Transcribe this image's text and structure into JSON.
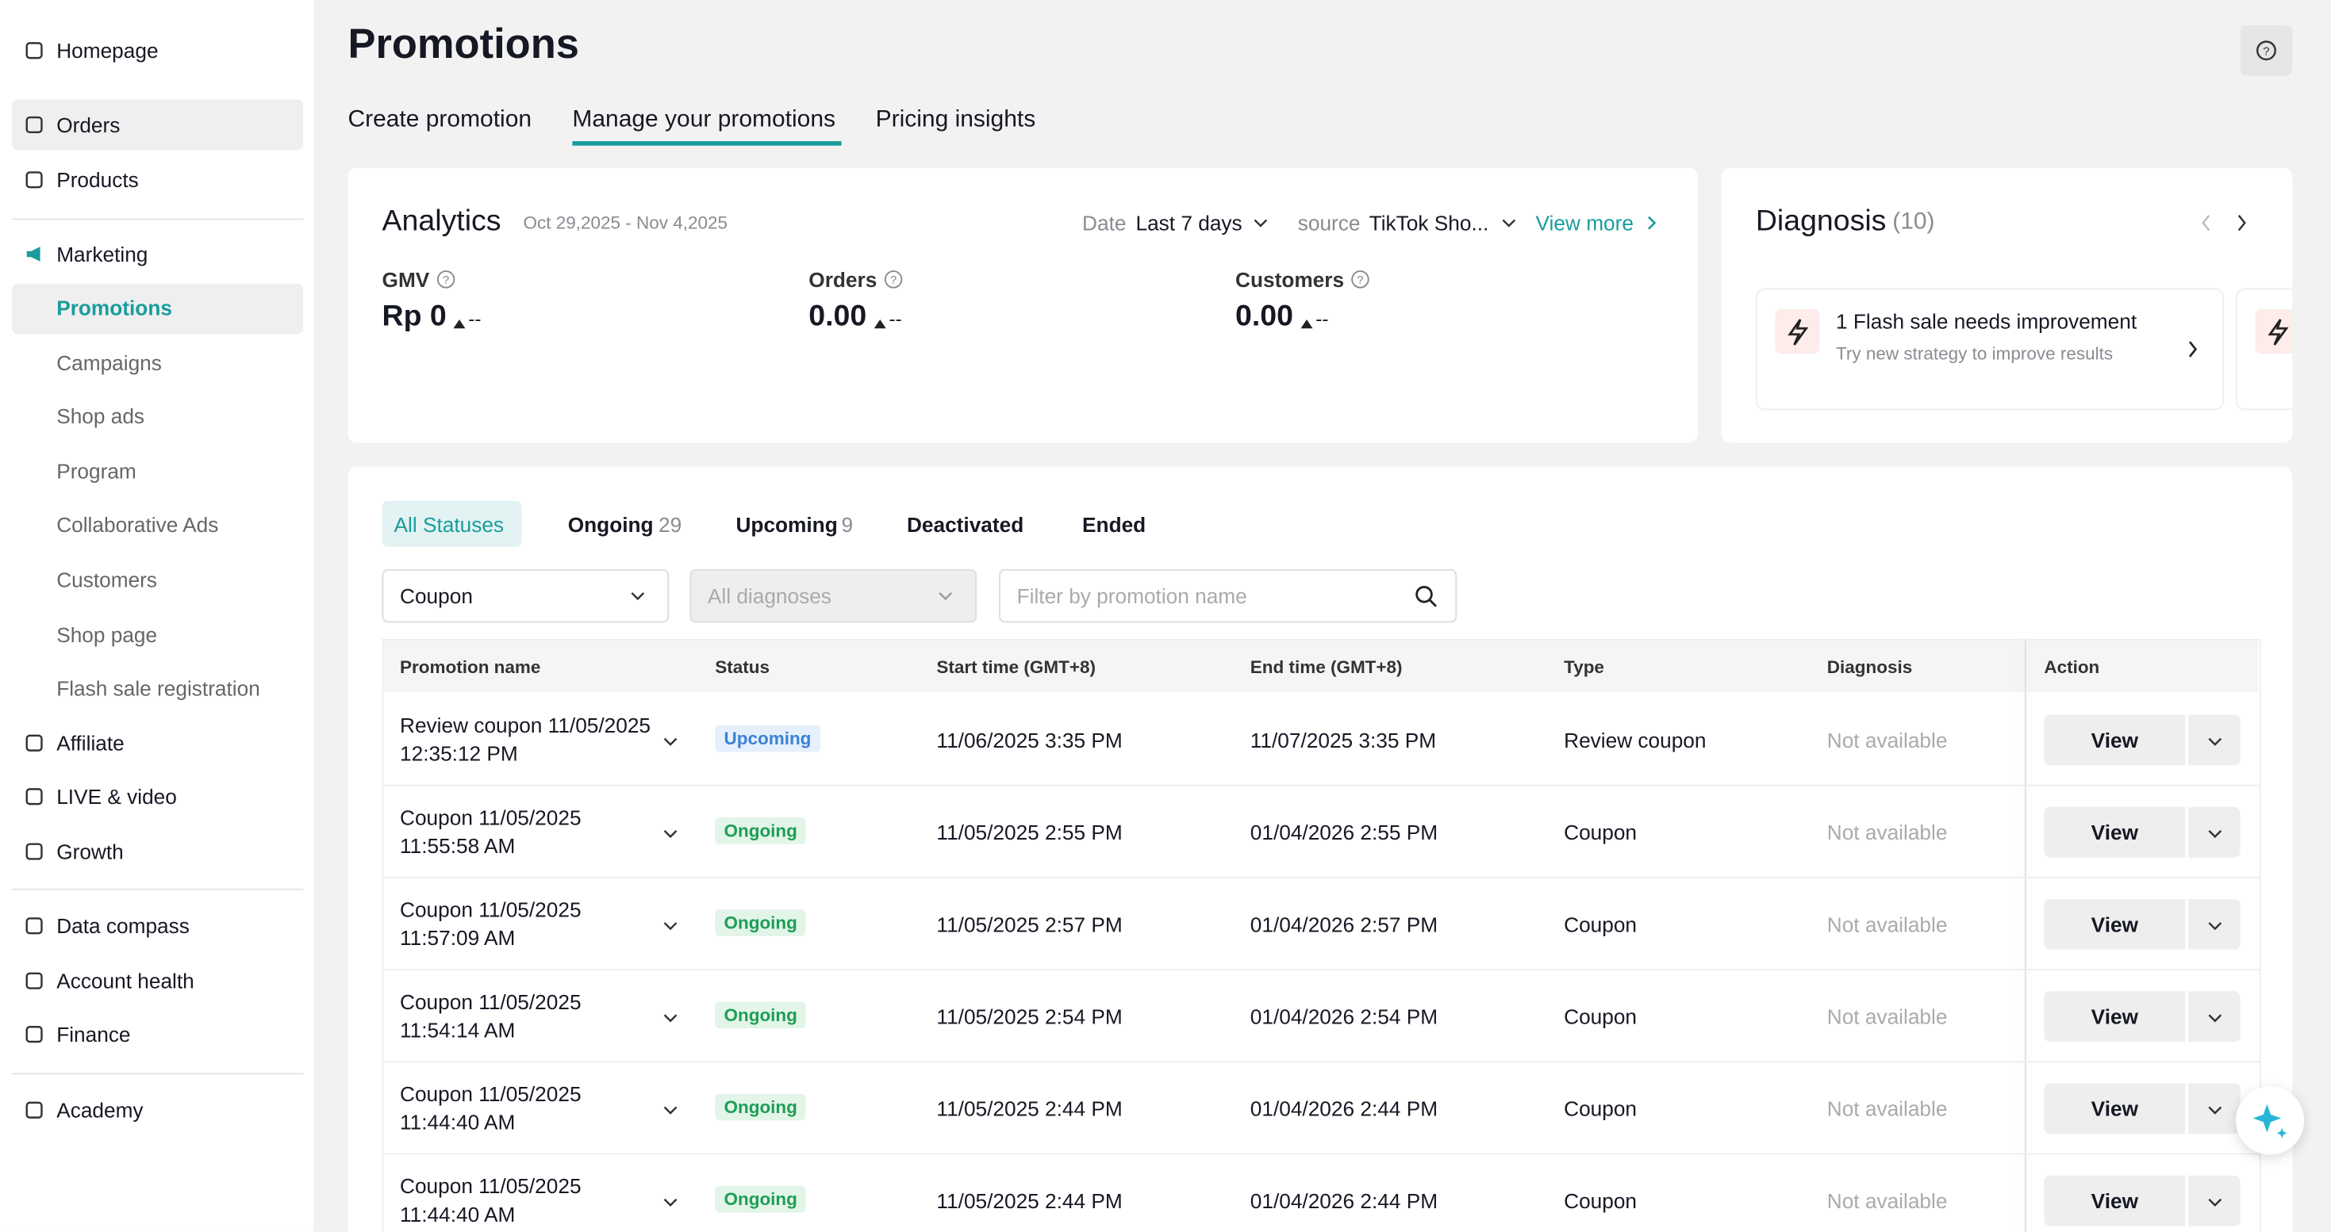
{
  "sidebar": {
    "items": [
      "Homepage",
      "Orders",
      "Products",
      "Marketing",
      "Promotions",
      "Campaigns",
      "Shop ads",
      "Program",
      "Collaborative Ads",
      "Customers",
      "Shop page",
      "Flash sale registration",
      "Affiliate",
      "LIVE & video",
      "Growth",
      "Data compass",
      "Account health",
      "Finance",
      "Academy"
    ]
  },
  "header": {
    "title": "Promotions",
    "tabs": [
      "Create promotion",
      "Manage your promotions",
      "Pricing insights"
    ]
  },
  "analytics": {
    "title": "Analytics",
    "date_range": "Oct 29,2025 - Nov 4,2025",
    "date_label": "Date",
    "date_value": "Last 7 days",
    "source_label": "source",
    "source_value": "TikTok Sho...",
    "view_more": "View more",
    "metrics": [
      {
        "label": "GMV",
        "value": "Rp 0",
        "change": "--"
      },
      {
        "label": "Orders",
        "value": "0.00",
        "change": "--"
      },
      {
        "label": "Customers",
        "value": "0.00",
        "change": "--"
      }
    ]
  },
  "diagnosis": {
    "title": "Diagnosis",
    "count": "(10)",
    "card": {
      "title": "1 Flash sale needs improvement",
      "subtitle": "Try new strategy to improve results"
    }
  },
  "filters": {
    "status_tabs": [
      {
        "label": "All Statuses"
      },
      {
        "label": "Ongoing",
        "count": 29
      },
      {
        "label": "Upcoming",
        "count": 9
      },
      {
        "label": "Deactivated"
      },
      {
        "label": "Ended"
      }
    ],
    "type_select": "Coupon",
    "diagnosis_select": "All diagnoses",
    "search_placeholder": "Filter by promotion name"
  },
  "table": {
    "columns": [
      "Promotion name",
      "Status",
      "Start time (GMT+8)",
      "End time (GMT+8)",
      "Type",
      "Diagnosis",
      "Action"
    ],
    "rows": [
      [
        "Review coupon 11/05/2025 12:35:12 PM",
        "Upcoming",
        "11/06/2025 3:35 PM",
        "11/07/2025 3:35 PM",
        "Review coupon",
        "Not available",
        "View"
      ],
      [
        "Coupon 11/05/2025 11:55:58 AM",
        "Ongoing",
        "11/05/2025 2:55 PM",
        "01/04/2026 2:55 PM",
        "Coupon",
        "Not available",
        "View"
      ],
      [
        "Coupon 11/05/2025 11:57:09 AM",
        "Ongoing",
        "11/05/2025 2:57 PM",
        "01/04/2026 2:57 PM",
        "Coupon",
        "Not available",
        "View"
      ],
      [
        "Coupon 11/05/2025 11:54:14 AM",
        "Ongoing",
        "11/05/2025 2:54 PM",
        "01/04/2026 2:54 PM",
        "Coupon",
        "Not available",
        "View"
      ],
      [
        "Coupon 11/05/2025 11:44:40 AM",
        "Ongoing",
        "11/05/2025 2:44 PM",
        "01/04/2026 2:44 PM",
        "Coupon",
        "Not available",
        "View"
      ],
      [
        "Coupon 11/05/2025 11:44:40 AM",
        "Ongoing",
        "11/05/2025 2:44 PM",
        "01/04/2026 2:44 PM",
        "Coupon",
        "Not available",
        "View"
      ]
    ]
  }
}
